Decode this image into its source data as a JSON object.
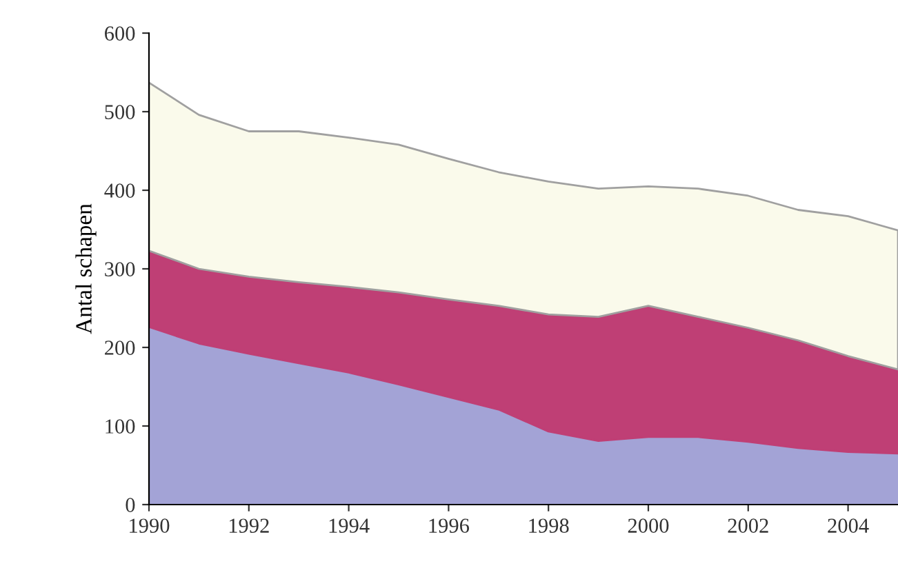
{
  "chart_data": {
    "type": "area",
    "stacked": true,
    "ylabel": "Antal schapen",
    "x": [
      1990,
      1991,
      1992,
      1993,
      1994,
      1995,
      1996,
      1997,
      1998,
      1999,
      2000,
      2001,
      2002,
      2003,
      2004,
      2005
    ],
    "series": [
      {
        "color": "#a3a3d6",
        "values": [
          226,
          205,
          192,
          180,
          168,
          153,
          137,
          121,
          93,
          81,
          86,
          86,
          80,
          72,
          67,
          65
        ]
      },
      {
        "color": "#bf3f75",
        "values": [
          97,
          95,
          98,
          103,
          109,
          117,
          124,
          132,
          149,
          158,
          167,
          153,
          145,
          137,
          122,
          107
        ]
      },
      {
        "color": "#fafaeb",
        "values": [
          214,
          196,
          185,
          192,
          190,
          188,
          179,
          170,
          169,
          163,
          152,
          163,
          168,
          166,
          178,
          177
        ]
      }
    ],
    "xlim": [
      1990,
      2005
    ],
    "xticks": [
      1990,
      1992,
      1994,
      1996,
      1998,
      2000,
      2002,
      2004
    ],
    "ylim": [
      0,
      600
    ],
    "yticks": [
      0,
      100,
      200,
      300,
      400,
      500,
      600
    ],
    "grid": false,
    "legend": false
  }
}
